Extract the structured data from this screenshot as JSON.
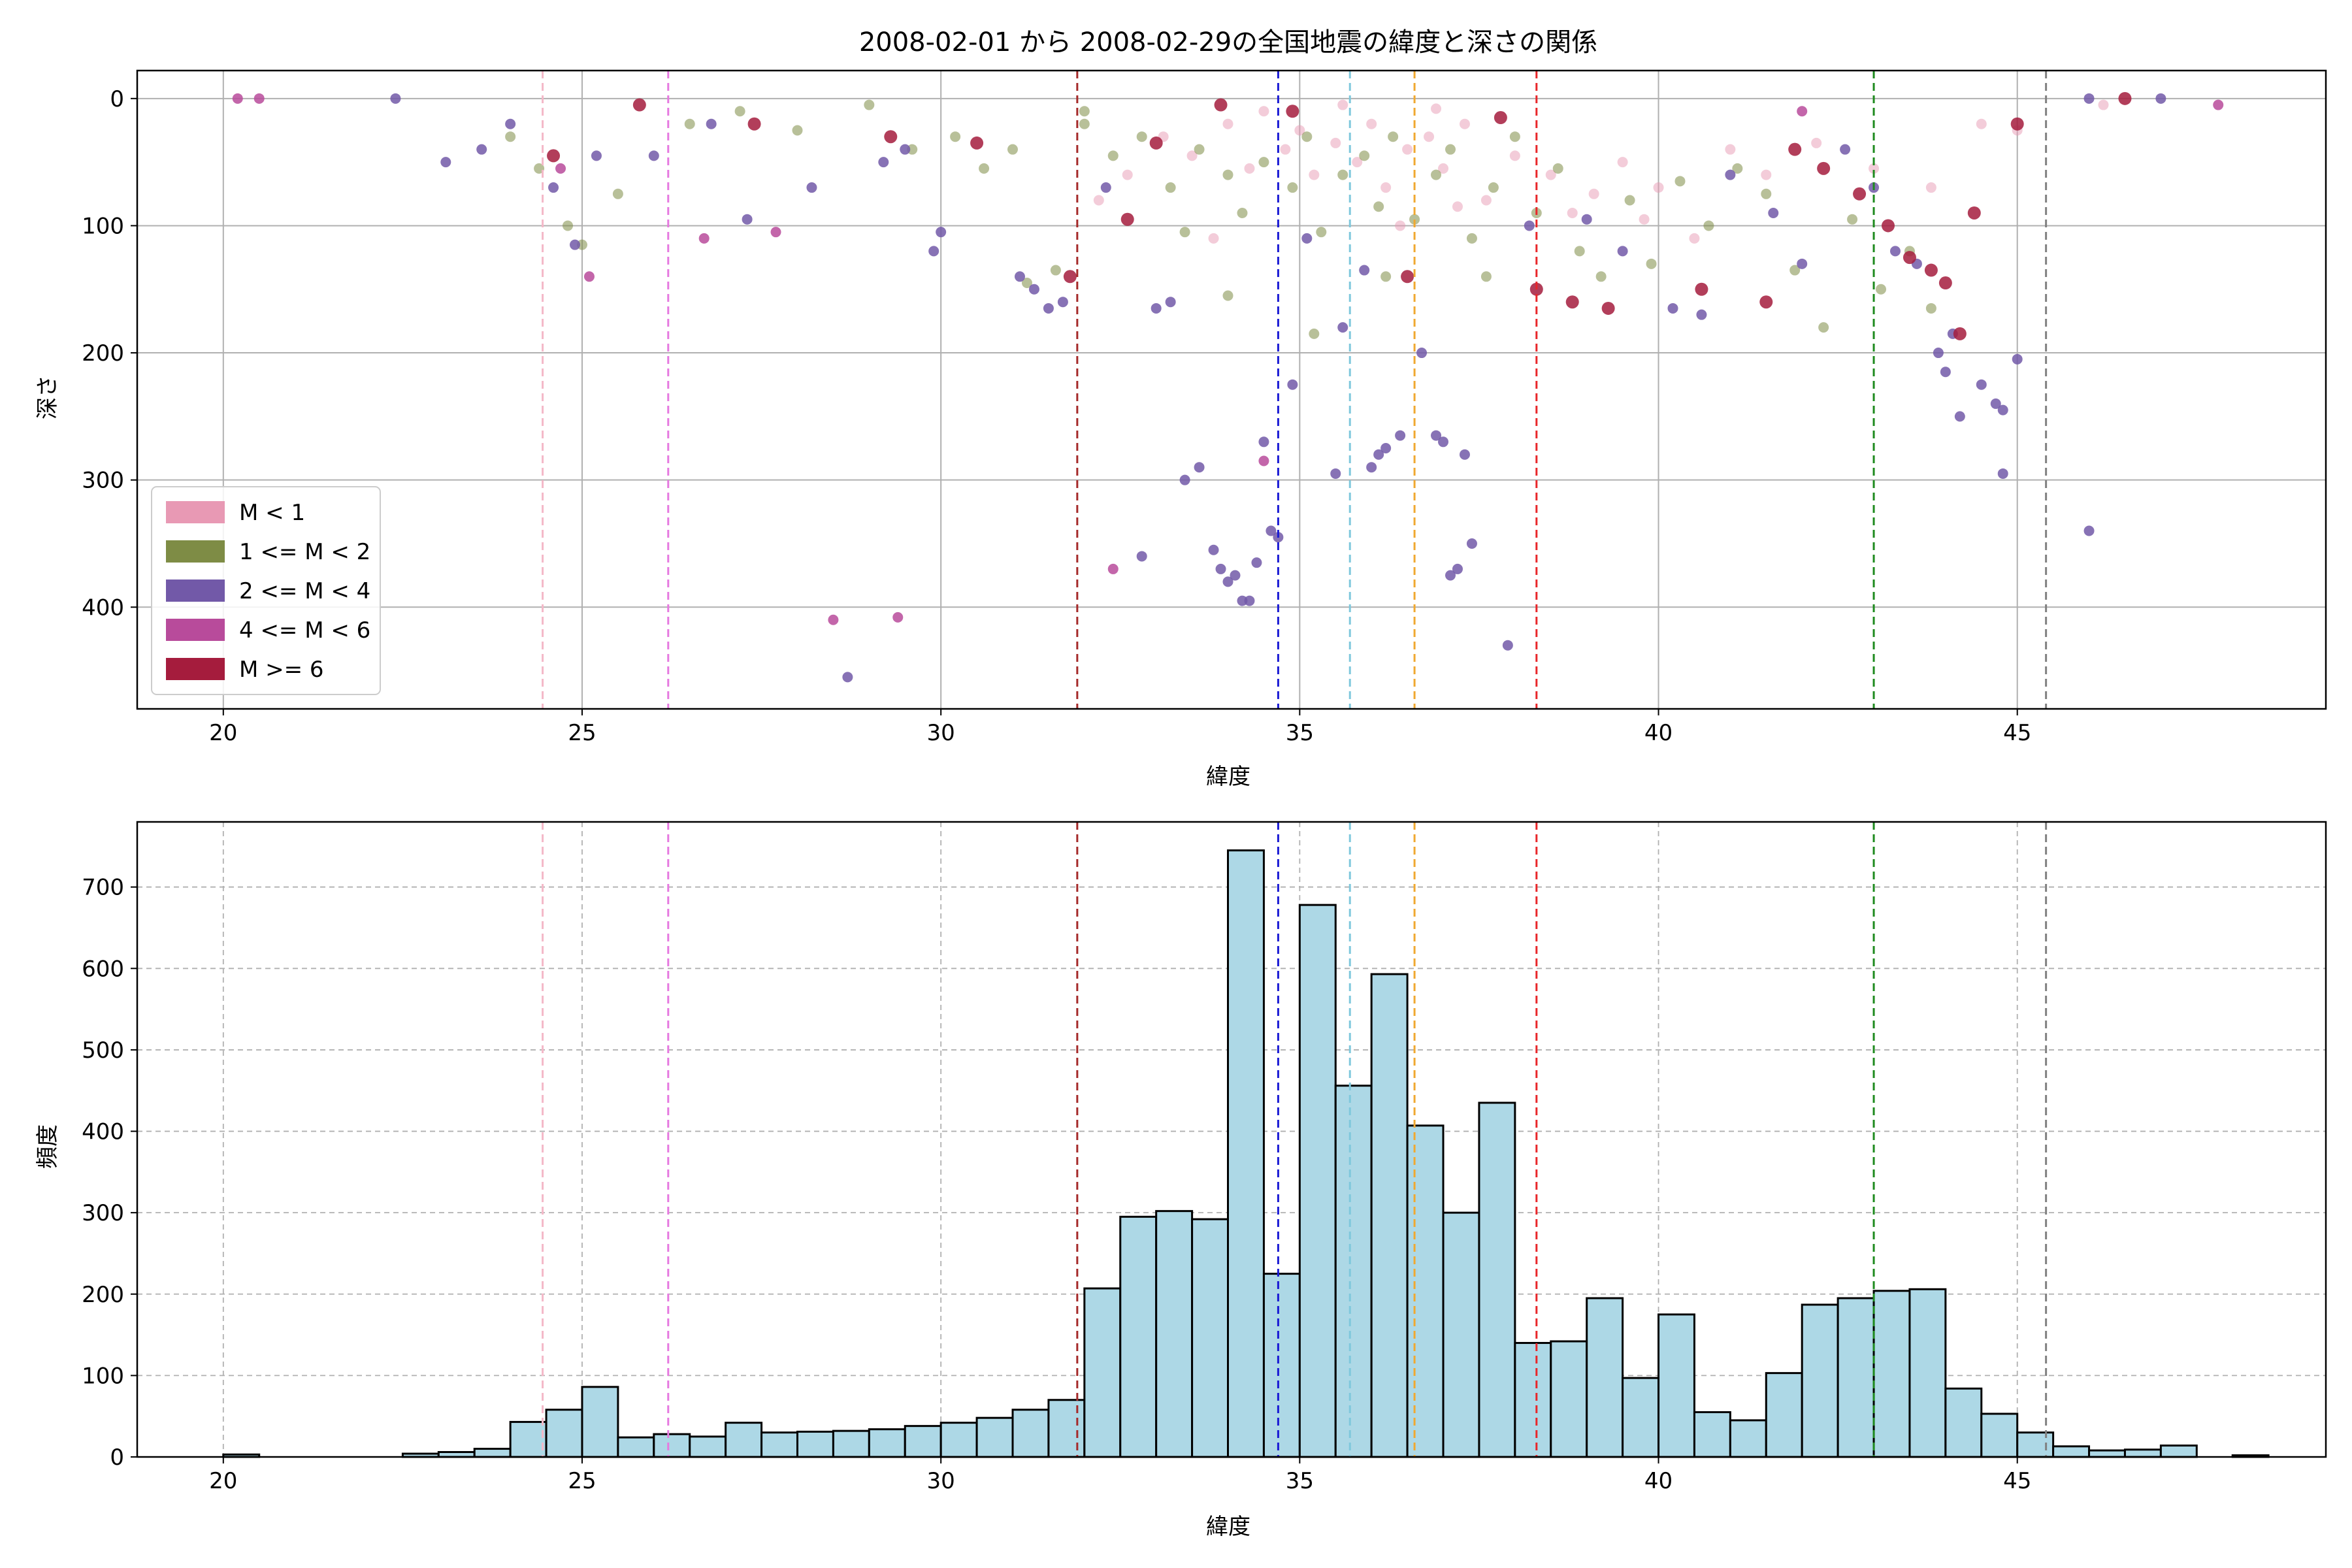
{
  "chart_data": [
    {
      "type": "scatter",
      "title": "2008-02-01 から 2008-02-29の全国地震の緯度と深さの関係",
      "xlabel": "緯度",
      "ylabel": "深さ",
      "xlim": [
        18.8,
        49.3
      ],
      "ylim": [
        480,
        -22
      ],
      "y_inverted": true,
      "grid": true,
      "xticks": [
        20,
        25,
        30,
        35,
        40,
        45
      ],
      "yticks": [
        0,
        100,
        200,
        300,
        400
      ],
      "legend_position": "bottom-left",
      "legend": [
        {
          "label": "M < 1",
          "color": "#e899b4"
        },
        {
          "label": "1 <= M < 2",
          "color": "#7e8c45"
        },
        {
          "label": "2 <= M < 4",
          "color": "#7259a8"
        },
        {
          "label": "4 <= M < 6",
          "color": "#b84b9b"
        },
        {
          "label": "M >= 6",
          "color": "#a51c3d"
        }
      ],
      "vlines": [
        {
          "x": 24.45,
          "color": "#f4b8c8"
        },
        {
          "x": 26.2,
          "color": "#e67ae0"
        },
        {
          "x": 31.9,
          "color": "#a52a2a"
        },
        {
          "x": 34.7,
          "color": "#1a1ad4"
        },
        {
          "x": 35.7,
          "color": "#7fc8dc"
        },
        {
          "x": 36.6,
          "color": "#f0a830"
        },
        {
          "x": 38.3,
          "color": "#e8262a"
        },
        {
          "x": 43.0,
          "color": "#1e8a1e"
        },
        {
          "x": 45.4,
          "color": "#808080"
        }
      ],
      "series": [
        {
          "name": "M < 1",
          "color": "#e899b4",
          "points": [
            [
              33.1,
              30
            ],
            [
              33.5,
              45
            ],
            [
              34.0,
              20
            ],
            [
              34.3,
              55
            ],
            [
              34.8,
              40
            ],
            [
              35.0,
              25
            ],
            [
              35.2,
              60
            ],
            [
              35.5,
              35
            ],
            [
              35.8,
              50
            ],
            [
              36.0,
              20
            ],
            [
              36.2,
              70
            ],
            [
              36.5,
              40
            ],
            [
              36.8,
              30
            ],
            [
              37.0,
              55
            ],
            [
              37.3,
              20
            ],
            [
              37.6,
              80
            ],
            [
              38.0,
              45
            ],
            [
              38.5,
              60
            ],
            [
              38.8,
              90
            ],
            [
              39.1,
              75
            ],
            [
              39.5,
              50
            ],
            [
              40.0,
              70
            ],
            [
              41.0,
              40
            ],
            [
              41.5,
              60
            ],
            [
              42.2,
              35
            ],
            [
              43.0,
              55
            ],
            [
              43.8,
              70
            ],
            [
              44.5,
              20
            ],
            [
              45.0,
              25
            ],
            [
              46.2,
              5
            ],
            [
              32.2,
              80
            ],
            [
              32.6,
              60
            ],
            [
              33.8,
              110
            ],
            [
              36.4,
              100
            ],
            [
              37.2,
              85
            ],
            [
              39.8,
              95
            ],
            [
              40.5,
              110
            ],
            [
              34.5,
              10
            ],
            [
              35.6,
              5
            ],
            [
              36.9,
              8
            ]
          ]
        },
        {
          "name": "1 <= M < 2",
          "color": "#7e8c45",
          "points": [
            [
              24.0,
              30
            ],
            [
              24.4,
              55
            ],
            [
              24.8,
              100
            ],
            [
              25.0,
              115
            ],
            [
              25.5,
              75
            ],
            [
              27.2,
              10
            ],
            [
              28.0,
              25
            ],
            [
              29.6,
              40
            ],
            [
              30.2,
              30
            ],
            [
              30.6,
              55
            ],
            [
              31.0,
              40
            ],
            [
              31.2,
              145
            ],
            [
              31.6,
              135
            ],
            [
              32.0,
              20
            ],
            [
              32.4,
              45
            ],
            [
              32.8,
              30
            ],
            [
              33.2,
              70
            ],
            [
              33.6,
              40
            ],
            [
              34.0,
              60
            ],
            [
              34.2,
              90
            ],
            [
              34.5,
              50
            ],
            [
              34.9,
              70
            ],
            [
              35.1,
              30
            ],
            [
              35.3,
              105
            ],
            [
              35.6,
              60
            ],
            [
              35.9,
              45
            ],
            [
              36.1,
              85
            ],
            [
              36.3,
              30
            ],
            [
              36.6,
              95
            ],
            [
              36.9,
              60
            ],
            [
              37.1,
              40
            ],
            [
              37.4,
              110
            ],
            [
              37.7,
              70
            ],
            [
              38.0,
              30
            ],
            [
              38.3,
              90
            ],
            [
              38.6,
              55
            ],
            [
              38.9,
              120
            ],
            [
              39.2,
              140
            ],
            [
              39.6,
              80
            ],
            [
              39.9,
              130
            ],
            [
              40.3,
              65
            ],
            [
              40.7,
              100
            ],
            [
              41.1,
              55
            ],
            [
              41.5,
              75
            ],
            [
              41.9,
              135
            ],
            [
              42.3,
              180
            ],
            [
              42.7,
              95
            ],
            [
              43.1,
              150
            ],
            [
              43.5,
              120
            ],
            [
              43.8,
              165
            ],
            [
              34.0,
              155
            ],
            [
              35.2,
              185
            ],
            [
              36.2,
              140
            ],
            [
              37.6,
              140
            ],
            [
              33.4,
              105
            ],
            [
              32.0,
              10
            ],
            [
              29.0,
              5
            ],
            [
              26.5,
              20
            ]
          ]
        },
        {
          "name": "2 <= M < 4",
          "color": "#7259a8",
          "points": [
            [
              22.4,
              0
            ],
            [
              23.1,
              50
            ],
            [
              23.6,
              40
            ],
            [
              24.0,
              20
            ],
            [
              24.6,
              70
            ],
            [
              24.9,
              115
            ],
            [
              25.2,
              45
            ],
            [
              26.0,
              45
            ],
            [
              26.8,
              20
            ],
            [
              27.3,
              95
            ],
            [
              28.2,
              70
            ],
            [
              29.2,
              50
            ],
            [
              29.5,
              40
            ],
            [
              29.9,
              120
            ],
            [
              30.0,
              105
            ],
            [
              31.1,
              140
            ],
            [
              31.3,
              150
            ],
            [
              31.5,
              165
            ],
            [
              31.7,
              160
            ],
            [
              32.3,
              70
            ],
            [
              32.8,
              360
            ],
            [
              33.0,
              165
            ],
            [
              33.2,
              160
            ],
            [
              33.4,
              300
            ],
            [
              33.6,
              290
            ],
            [
              33.8,
              355
            ],
            [
              33.9,
              370
            ],
            [
              34.0,
              380
            ],
            [
              34.1,
              375
            ],
            [
              34.2,
              395
            ],
            [
              34.3,
              395
            ],
            [
              34.4,
              365
            ],
            [
              34.5,
              270
            ],
            [
              34.6,
              340
            ],
            [
              34.7,
              345
            ],
            [
              34.9,
              225
            ],
            [
              35.1,
              110
            ],
            [
              35.5,
              295
            ],
            [
              35.6,
              180
            ],
            [
              35.9,
              135
            ],
            [
              36.0,
              290
            ],
            [
              36.1,
              280
            ],
            [
              36.2,
              275
            ],
            [
              36.4,
              265
            ],
            [
              36.7,
              200
            ],
            [
              36.9,
              265
            ],
            [
              37.0,
              270
            ],
            [
              37.1,
              375
            ],
            [
              37.2,
              370
            ],
            [
              37.3,
              280
            ],
            [
              37.4,
              350
            ],
            [
              37.9,
              430
            ],
            [
              38.2,
              100
            ],
            [
              39.0,
              95
            ],
            [
              39.5,
              120
            ],
            [
              40.2,
              165
            ],
            [
              40.6,
              170
            ],
            [
              41.0,
              60
            ],
            [
              41.6,
              90
            ],
            [
              42.0,
              130
            ],
            [
              42.6,
              40
            ],
            [
              43.0,
              70
            ],
            [
              43.3,
              120
            ],
            [
              43.6,
              130
            ],
            [
              43.9,
              200
            ],
            [
              44.0,
              215
            ],
            [
              44.1,
              185
            ],
            [
              44.2,
              250
            ],
            [
              44.5,
              225
            ],
            [
              44.7,
              240
            ],
            [
              44.8,
              245
            ],
            [
              45.0,
              205
            ],
            [
              44.8,
              295
            ],
            [
              46.0,
              340
            ],
            [
              28.7,
              455
            ],
            [
              47.0,
              0
            ],
            [
              46.0,
              0
            ]
          ]
        },
        {
          "name": "4 <= M < 6",
          "color": "#b84b9b",
          "points": [
            [
              20.2,
              0
            ],
            [
              20.5,
              0
            ],
            [
              24.7,
              55
            ],
            [
              25.1,
              140
            ],
            [
              26.7,
              110
            ],
            [
              27.7,
              105
            ],
            [
              28.5,
              410
            ],
            [
              29.4,
              408
            ],
            [
              32.4,
              370
            ],
            [
              34.5,
              285
            ],
            [
              47.8,
              5
            ],
            [
              42.0,
              10
            ]
          ]
        },
        {
          "name": "M >= 6",
          "color": "#a51c3d",
          "points": [
            [
              24.6,
              45
            ],
            [
              25.8,
              5
            ],
            [
              27.4,
              20
            ],
            [
              29.3,
              30
            ],
            [
              30.5,
              35
            ],
            [
              31.8,
              140
            ],
            [
              32.6,
              95
            ],
            [
              33.0,
              35
            ],
            [
              34.9,
              10
            ],
            [
              36.5,
              140
            ],
            [
              37.8,
              15
            ],
            [
              38.3,
              150
            ],
            [
              38.8,
              160
            ],
            [
              39.3,
              165
            ],
            [
              40.6,
              150
            ],
            [
              41.5,
              160
            ],
            [
              41.9,
              40
            ],
            [
              42.3,
              55
            ],
            [
              42.8,
              75
            ],
            [
              43.2,
              100
            ],
            [
              43.5,
              125
            ],
            [
              43.8,
              135
            ],
            [
              44.0,
              145
            ],
            [
              44.2,
              185
            ],
            [
              44.4,
              90
            ],
            [
              45.0,
              20
            ],
            [
              46.5,
              0
            ],
            [
              33.9,
              5
            ]
          ]
        }
      ]
    },
    {
      "type": "bar",
      "title": "",
      "xlabel": "緯度",
      "ylabel": "頻度",
      "xlim": [
        18.8,
        49.3
      ],
      "ylim": [
        0,
        780
      ],
      "grid": true,
      "xticks": [
        20,
        25,
        30,
        35,
        40,
        45
      ],
      "yticks": [
        0,
        100,
        200,
        300,
        400,
        500,
        600,
        700
      ],
      "bar_color": "#add8e6",
      "edge_color": "#000000",
      "bin_start": 20.0,
      "bin_width": 0.5,
      "values": [
        3,
        0,
        0,
        0,
        0,
        4,
        6,
        10,
        43,
        58,
        86,
        24,
        28,
        25,
        42,
        30,
        31,
        32,
        34,
        38,
        42,
        48,
        58,
        70,
        207,
        295,
        302,
        292,
        745,
        225,
        678,
        456,
        593,
        407,
        300,
        435,
        140,
        142,
        195,
        97,
        175,
        55,
        45,
        103,
        187,
        195,
        204,
        206,
        84,
        53,
        30,
        13,
        8,
        9,
        14,
        0,
        2
      ],
      "vlines": [
        {
          "x": 24.45,
          "color": "#f4b8c8"
        },
        {
          "x": 26.2,
          "color": "#e67ae0"
        },
        {
          "x": 31.9,
          "color": "#a52a2a"
        },
        {
          "x": 34.7,
          "color": "#1a1ad4"
        },
        {
          "x": 35.7,
          "color": "#7fc8dc"
        },
        {
          "x": 36.6,
          "color": "#f0a830"
        },
        {
          "x": 38.3,
          "color": "#e8262a"
        },
        {
          "x": 43.0,
          "color": "#1e8a1e"
        },
        {
          "x": 45.4,
          "color": "#808080"
        }
      ]
    }
  ]
}
